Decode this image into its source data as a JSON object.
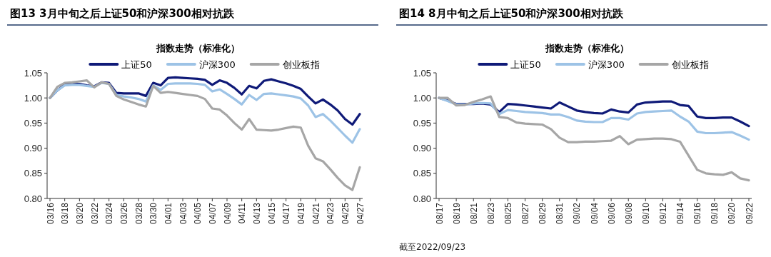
{
  "chart_data": [
    {
      "type": "line",
      "title": "图13 3月中旬之后上证50和沪深300相对抗跌",
      "subtitle": "指数走势（标准化）",
      "legend": "top",
      "grid": false,
      "categories": [
        "03/16",
        null,
        "03/18",
        null,
        "03/20",
        null,
        "03/22",
        null,
        "03/24",
        null,
        "03/26",
        null,
        "03/28",
        null,
        "03/30",
        null,
        "04/01",
        null,
        "04/03",
        null,
        "04/05",
        null,
        "04/07",
        null,
        "04/09",
        null,
        "04/11",
        null,
        "04/13",
        null,
        "04/15",
        null,
        "04/17",
        null,
        "04/19",
        null,
        "04/21",
        null,
        "04/23",
        null,
        "04/25",
        null,
        "04/27"
      ],
      "ylim": [
        0.8,
        1.05
      ],
      "yticks": [
        {
          "value": 0.8,
          "label": "0.80"
        },
        {
          "value": 0.85,
          "label": "0.85"
        },
        {
          "value": 0.9,
          "label": "0.90"
        },
        {
          "value": 0.95,
          "label": "0.95"
        },
        {
          "value": 1.0,
          "label": "1.00"
        },
        {
          "value": 1.05,
          "label": "1.05"
        }
      ],
      "series": [
        {
          "name": "上证50",
          "color": "#0f1a78",
          "values": [
            1.0,
            1.015,
            1.027,
            1.028,
            1.028,
            1.025,
            1.023,
            1.031,
            1.03,
            1.01,
            1.009,
            1.009,
            1.009,
            1.004,
            1.03,
            1.025,
            1.04,
            1.041,
            1.04,
            1.039,
            1.038,
            1.036,
            1.026,
            1.035,
            1.03,
            1.02,
            1.007,
            1.024,
            1.019,
            1.034,
            1.037,
            1.033,
            1.029,
            1.024,
            1.018,
            1.003,
            0.989,
            0.997,
            0.987,
            0.975,
            0.958,
            0.947,
            0.968
          ]
        },
        {
          "name": "沪深300",
          "color": "#9dc3e6",
          "values": [
            1.0,
            1.015,
            1.025,
            1.026,
            1.026,
            1.024,
            1.022,
            1.03,
            1.028,
            1.006,
            1.003,
            1.001,
            0.998,
            0.993,
            1.025,
            1.016,
            1.028,
            1.029,
            1.029,
            1.029,
            1.028,
            1.026,
            1.013,
            1.017,
            1.008,
            0.998,
            0.987,
            1.006,
            0.996,
            1.008,
            1.009,
            1.007,
            1.005,
            1.003,
            0.999,
            0.985,
            0.962,
            0.968,
            0.955,
            0.94,
            0.925,
            0.911,
            0.938
          ]
        },
        {
          "name": "创业板指",
          "color": "#a6a6a6",
          "values": [
            1.0,
            1.022,
            1.03,
            1.031,
            1.033,
            1.035,
            1.021,
            1.031,
            1.028,
            1.004,
            0.997,
            0.992,
            0.987,
            0.983,
            1.024,
            1.01,
            1.012,
            1.01,
            1.008,
            1.006,
            1.004,
            0.998,
            0.979,
            0.977,
            0.965,
            0.95,
            0.937,
            0.958,
            0.937,
            0.936,
            0.935,
            0.937,
            0.94,
            0.943,
            0.941,
            0.905,
            0.88,
            0.874,
            0.858,
            0.841,
            0.826,
            0.817,
            0.862
          ]
        }
      ]
    },
    {
      "type": "line",
      "title": "图14 8月中旬之后上证50和沪深300相对抗跌",
      "subtitle": "指数走势（标准化）",
      "legend": "top",
      "grid": false,
      "annotations": [
        "截至2022/09/23"
      ],
      "categories": [
        "08/17",
        null,
        "08/19",
        null,
        "08/21",
        null,
        "08/23",
        null,
        "08/25",
        null,
        "08/27",
        null,
        "08/29",
        null,
        "08/31",
        null,
        "09/02",
        null,
        "09/04",
        null,
        "09/06",
        null,
        "09/08",
        null,
        "09/10",
        null,
        "09/12",
        null,
        "09/14",
        null,
        "09/16",
        null,
        "09/18",
        null,
        "09/20",
        null,
        "09/22"
      ],
      "ylim": [
        0.8,
        1.05
      ],
      "yticks": [
        {
          "value": 0.8,
          "label": "0.80"
        },
        {
          "value": 0.85,
          "label": "0.85"
        },
        {
          "value": 0.9,
          "label": "0.90"
        },
        {
          "value": 0.95,
          "label": "0.95"
        },
        {
          "value": 1.0,
          "label": "1.00"
        },
        {
          "value": 1.05,
          "label": "1.05"
        }
      ],
      "series": [
        {
          "name": "上证50",
          "color": "#0f1a78",
          "values": [
            1.0,
            0.995,
            0.988,
            0.988,
            0.988,
            0.989,
            0.987,
            0.972,
            0.988,
            0.987,
            0.985,
            0.983,
            0.981,
            0.979,
            0.991,
            0.983,
            0.975,
            0.972,
            0.97,
            0.969,
            0.977,
            0.973,
            0.971,
            0.987,
            0.991,
            0.992,
            0.993,
            0.993,
            0.986,
            0.984,
            0.963,
            0.96,
            0.96,
            0.961,
            0.961,
            0.953,
            0.944
          ]
        },
        {
          "name": "沪深300",
          "color": "#9dc3e6",
          "values": [
            1.0,
            0.994,
            0.987,
            0.987,
            0.989,
            0.99,
            0.989,
            0.968,
            0.976,
            0.974,
            0.972,
            0.971,
            0.97,
            0.967,
            0.967,
            0.962,
            0.955,
            0.953,
            0.952,
            0.952,
            0.96,
            0.96,
            0.957,
            0.969,
            0.972,
            0.973,
            0.974,
            0.975,
            0.963,
            0.953,
            0.933,
            0.93,
            0.93,
            0.931,
            0.932,
            0.925,
            0.917
          ]
        },
        {
          "name": "创业板指",
          "color": "#a6a6a6",
          "values": [
            1.0,
            1.0,
            0.985,
            0.986,
            0.992,
            0.997,
            1.003,
            0.962,
            0.96,
            0.951,
            0.949,
            0.948,
            0.947,
            0.938,
            0.921,
            0.912,
            0.912,
            0.913,
            0.913,
            0.914,
            0.915,
            0.924,
            0.908,
            0.917,
            0.918,
            0.919,
            0.919,
            0.918,
            0.913,
            0.885,
            0.857,
            0.85,
            0.848,
            0.847,
            0.852,
            0.84,
            0.836
          ]
        }
      ]
    }
  ]
}
